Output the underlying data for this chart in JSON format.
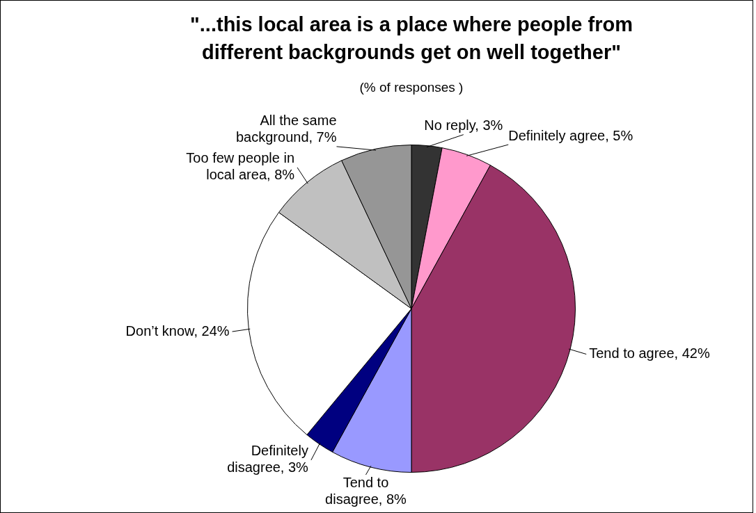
{
  "chart_data": {
    "type": "pie",
    "title": "\"...this local area is a place where people from different backgrounds get on well together\"",
    "subtitle": "(% of responses )",
    "categories": [
      "No reply",
      "Definitely agree",
      "Tend to agree",
      "Tend to disagree",
      "Definitely disagree",
      "Don’t know",
      "Too few people in local area",
      "All the same background"
    ],
    "values": [
      3,
      5,
      42,
      8,
      3,
      24,
      8,
      7
    ],
    "colors": [
      "#333333",
      "#ff99cc",
      "#993366",
      "#9999ff",
      "#000080",
      "#ffffff",
      "#c0c0c0",
      "#969696"
    ],
    "value_labels": [
      "3%",
      "5%",
      "42%",
      "8%",
      "3%",
      "24%",
      "8%",
      "7%"
    ],
    "legend": false
  }
}
